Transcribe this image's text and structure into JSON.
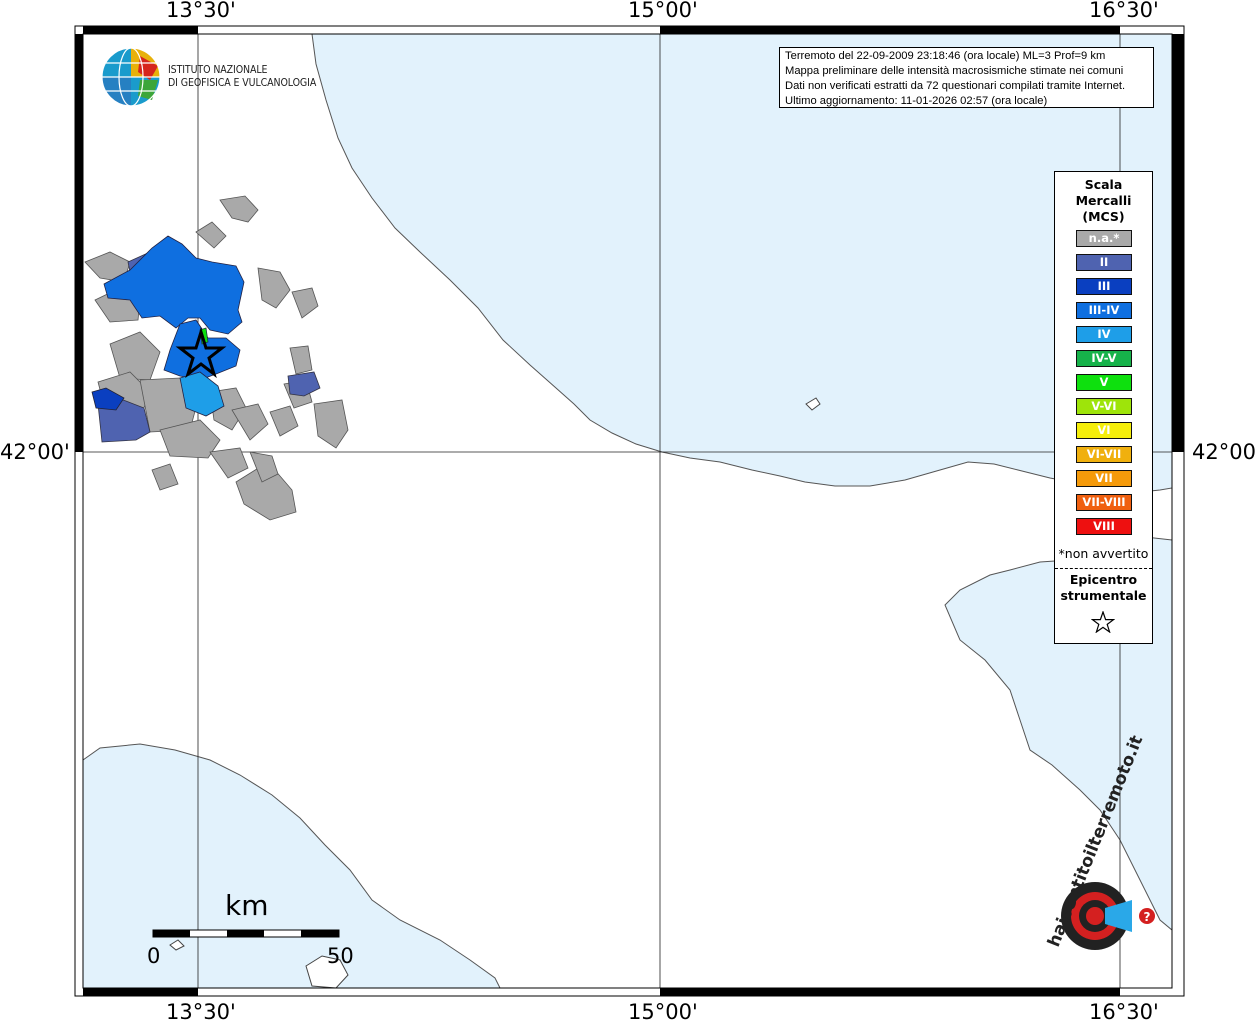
{
  "frame": {
    "lon_labels_top": [
      "13°30'",
      "15°00'",
      "16°30'"
    ],
    "lon_labels_bottom": [
      "13°30'",
      "15°00'",
      "16°30'"
    ],
    "lat_label_left": "42°00'",
    "lat_label_right": "42°00'"
  },
  "logo_ingv": {
    "line1": "ISTITUTO NAZIONALE",
    "line2": "DI GEOFISICA E VULCANOLOGIA"
  },
  "info": {
    "line1": "Terremoto del 22-09-2009 23:18:46 (ora locale) ML=3 Prof=9 km",
    "line2": "Mappa preliminare delle intensità macrosismiche stimate nei comuni",
    "line3": "Dati non verificati estratti da 72 questionari compilati tramite Internet.",
    "line4": "Ultimo aggiornamento: 11-01-2026 02:57 (ora locale)"
  },
  "legend": {
    "title_line1": "Scala",
    "title_line2": "Mercalli",
    "title_line3": "(MCS)",
    "items": [
      {
        "label": "n.a.*",
        "color": "#a9a9a9"
      },
      {
        "label": "II",
        "color": "#4f63b0"
      },
      {
        "label": "III",
        "color": "#0a3fc0"
      },
      {
        "label": "III-IV",
        "color": "#0f6fe0"
      },
      {
        "label": "IV",
        "color": "#1e9ee8"
      },
      {
        "label": "IV-V",
        "color": "#16b24a"
      },
      {
        "label": "V",
        "color": "#0ee00e"
      },
      {
        "label": "V-VI",
        "color": "#9ee40a"
      },
      {
        "label": "VI",
        "color": "#f5ee0a"
      },
      {
        "label": "VI-VII",
        "color": "#f0b00e"
      },
      {
        "label": "VII",
        "color": "#f59a0a"
      },
      {
        "label": "VII-VIII",
        "color": "#f06010"
      },
      {
        "label": "VIII",
        "color": "#ee1010"
      }
    ],
    "note": "*non avvertito",
    "epicenter_line1": "Epicentro",
    "epicenter_line2": "strumentale"
  },
  "scalebar": {
    "unit": "km",
    "min_label": "0",
    "max_label": "50"
  },
  "logo_hsit": {
    "text": "haisentitoilterremoto.it"
  },
  "colors": {
    "sea": "#e2f2fc",
    "land": "#ffffff",
    "not_felt": "#a9a9a9",
    "mcs_II": "#4f63b0",
    "mcs_III": "#0a3fc0",
    "mcs_III_IV": "#0f6fe0",
    "mcs_IV": "#1e9ee8",
    "mcs_V": "#0ee00e"
  }
}
